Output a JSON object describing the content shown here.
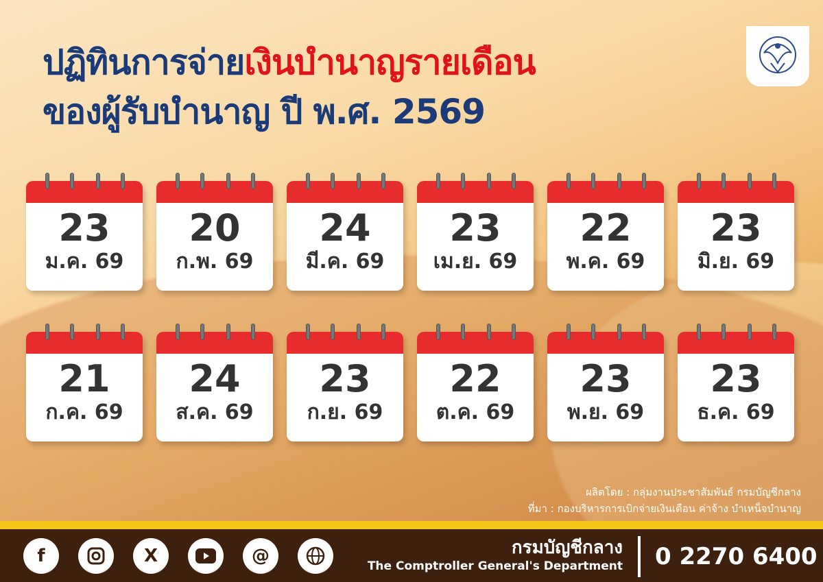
{
  "header": {
    "title_part1": "ปฏิทินการจ่าย",
    "title_part2": "เงินบำนาญรายเดือน",
    "subtitle": "ของผู้รับบำนาญ ปี พ.ศ. 2569",
    "logo_text": "กรมบัญชีกลาง"
  },
  "calendar": [
    {
      "day": "23",
      "month": "ม.ค. 69"
    },
    {
      "day": "20",
      "month": "ก.พ. 69"
    },
    {
      "day": "24",
      "month": "มี.ค. 69"
    },
    {
      "day": "23",
      "month": "เม.ย. 69"
    },
    {
      "day": "22",
      "month": "พ.ค. 69"
    },
    {
      "day": "23",
      "month": "มิ.ย. 69"
    },
    {
      "day": "21",
      "month": "ก.ค. 69"
    },
    {
      "day": "24",
      "month": "ส.ค. 69"
    },
    {
      "day": "23",
      "month": "ก.ย. 69"
    },
    {
      "day": "22",
      "month": "ต.ค. 69"
    },
    {
      "day": "23",
      "month": "พ.ย. 69"
    },
    {
      "day": "23",
      "month": "ธ.ค. 69"
    }
  ],
  "credits": {
    "producer": "ผลิตโดย : กลุ่มงานประชาสัมพันธ์  กรมบัญชีกลาง",
    "source": "ที่มา : กองบริหารการเบิกจ่ายเงินเดือน ค่าจ้าง บำเหน็จบำนาญ"
  },
  "footer": {
    "org_th": "กรมบัญชีกลาง",
    "org_en": "The Comptroller General's Department",
    "phone": "0 2270 6400",
    "social": [
      "facebook-icon",
      "instagram-icon",
      "x-icon",
      "youtube-icon",
      "threads-icon",
      "globe-icon"
    ]
  },
  "colors": {
    "title_blue": "#1b3a78",
    "title_red": "#e0131a",
    "calendar_red": "#e62c2c",
    "footer_brown": "#3d210e",
    "stripe_yellow": "#f4c516"
  }
}
